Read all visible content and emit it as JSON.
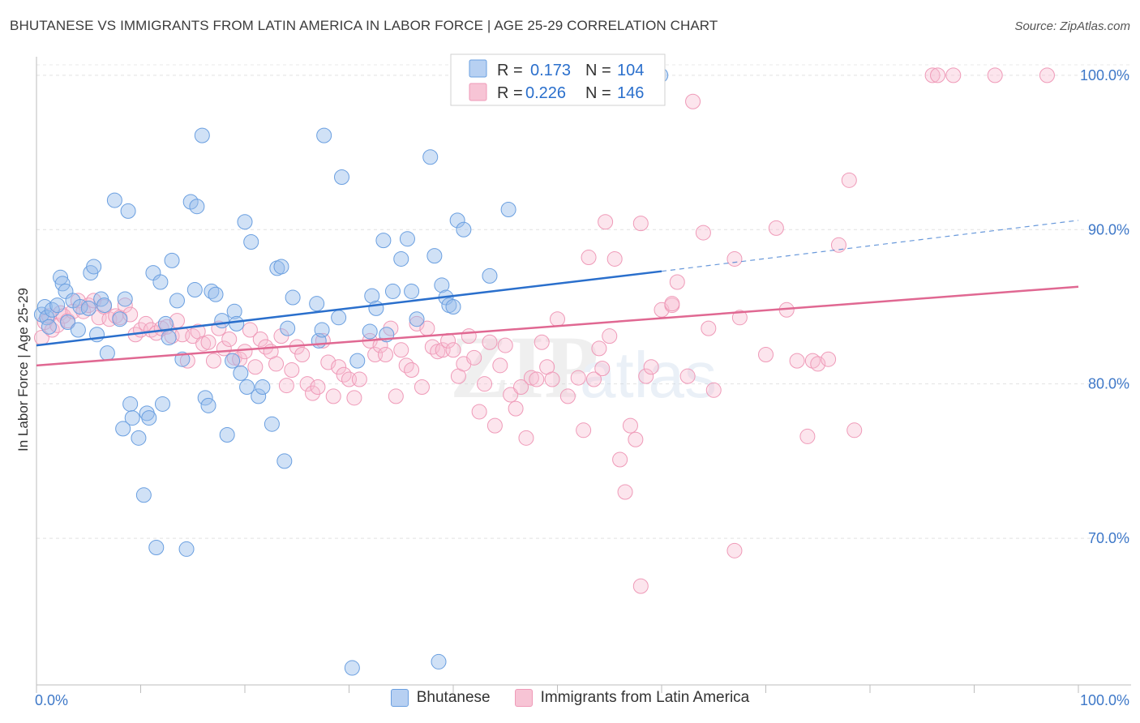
{
  "title": "BHUTANESE VS IMMIGRANTS FROM LATIN AMERICA IN LABOR FORCE | AGE 25-29 CORRELATION CHART",
  "source": "Source: ZipAtlas.com",
  "colors": {
    "blue": "#6a9fe0",
    "blue_line": "#2a6fcc",
    "pink": "#ef9ab8",
    "pink_line": "#e06892",
    "axis_text": "#3e78c8"
  },
  "chart_data": {
    "type": "scatter",
    "title": "BHUTANESE VS IMMIGRANTS FROM LATIN AMERICA IN LABOR FORCE | AGE 25-29 CORRELATION CHART",
    "ylabel": "In Labor Force | Age 25-29",
    "xlim": [
      0,
      100
    ],
    "ylim": [
      60.5,
      101.2
    ],
    "x_ticks": [
      "0.0%",
      "100.0%"
    ],
    "y_ticks": [
      {
        "value": 100,
        "label": "100.0%"
      },
      {
        "value": 90,
        "label": "90.0%"
      },
      {
        "value": 80,
        "label": "80.0%"
      },
      {
        "value": 70,
        "label": "70.0%"
      }
    ],
    "grid": true,
    "legend": [
      {
        "r_label": "R =",
        "r": "0.173",
        "n_label": "N =",
        "n": "104"
      },
      {
        "r_label": "R =",
        "r": "0.226",
        "n_label": "N =",
        "n": "146"
      }
    ],
    "series": [
      {
        "name": "Bhutanese",
        "trend": {
          "x0": 0,
          "y0": 82.5,
          "x1": 60,
          "y1": 87.3,
          "dash_to_x": 100,
          "dash_to_y": 90.6
        },
        "points": [
          [
            0.5,
            84.5
          ],
          [
            0.8,
            85
          ],
          [
            1,
            84.3
          ],
          [
            1.2,
            83.7
          ],
          [
            1.5,
            84.8
          ],
          [
            2,
            85.1
          ],
          [
            2.3,
            86.9
          ],
          [
            2.5,
            86.5
          ],
          [
            2.8,
            86
          ],
          [
            3,
            84
          ],
          [
            3.5,
            85.4
          ],
          [
            4,
            83.5
          ],
          [
            4.2,
            85
          ],
          [
            5,
            84.9
          ],
          [
            5.2,
            87.2
          ],
          [
            5.5,
            87.6
          ],
          [
            5.8,
            83.2
          ],
          [
            6.2,
            85.5
          ],
          [
            6.5,
            85.1
          ],
          [
            6.8,
            82
          ],
          [
            7.5,
            91.9
          ],
          [
            8,
            84.2
          ],
          [
            8.3,
            77.1
          ],
          [
            8.5,
            85.5
          ],
          [
            8.8,
            91.2
          ],
          [
            9,
            78.7
          ],
          [
            9.2,
            77.8
          ],
          [
            9.8,
            76.5
          ],
          [
            10.3,
            72.8
          ],
          [
            10.6,
            78.1
          ],
          [
            10.8,
            77.8
          ],
          [
            11.2,
            87.2
          ],
          [
            11.5,
            69.4
          ],
          [
            11.9,
            86.6
          ],
          [
            12.1,
            78.7
          ],
          [
            12.4,
            83.9
          ],
          [
            12.7,
            83
          ],
          [
            13,
            88
          ],
          [
            13.5,
            85.4
          ],
          [
            14,
            81.6
          ],
          [
            14.4,
            69.3
          ],
          [
            14.8,
            91.8
          ],
          [
            15.2,
            86.1
          ],
          [
            15.4,
            91.5
          ],
          [
            15.9,
            96.1
          ],
          [
            16.2,
            79.1
          ],
          [
            16.5,
            78.6
          ],
          [
            16.8,
            86
          ],
          [
            17.2,
            85.8
          ],
          [
            17.8,
            84.1
          ],
          [
            18.3,
            76.7
          ],
          [
            18.8,
            81.5
          ],
          [
            19,
            84.7
          ],
          [
            19.2,
            83.9
          ],
          [
            19.6,
            80.7
          ],
          [
            20,
            90.5
          ],
          [
            20.2,
            79.8
          ],
          [
            20.6,
            89.2
          ],
          [
            21.3,
            79.2
          ],
          [
            21.7,
            79.8
          ],
          [
            22.6,
            77.4
          ],
          [
            23.1,
            87.5
          ],
          [
            23.5,
            87.6
          ],
          [
            23.8,
            75
          ],
          [
            24.1,
            83.6
          ],
          [
            24.6,
            85.6
          ],
          [
            26.9,
            85.2
          ],
          [
            27.1,
            82.8
          ],
          [
            27.4,
            83.5
          ],
          [
            27.6,
            96.1
          ],
          [
            29,
            84.3
          ],
          [
            29.3,
            93.4
          ],
          [
            30.3,
            61.6
          ],
          [
            30.8,
            81.5
          ],
          [
            32,
            83.4
          ],
          [
            32.2,
            85.7
          ],
          [
            32.6,
            84.9
          ],
          [
            33.3,
            89.3
          ],
          [
            33.6,
            83.2
          ],
          [
            34.2,
            86
          ],
          [
            35,
            88.1
          ],
          [
            35.6,
            89.4
          ],
          [
            36,
            86
          ],
          [
            36.5,
            84.2
          ],
          [
            37.8,
            94.7
          ],
          [
            38.2,
            88.3
          ],
          [
            38.6,
            62
          ],
          [
            38.9,
            86.4
          ],
          [
            39.3,
            85.6
          ],
          [
            39.6,
            85.1
          ],
          [
            40,
            85
          ],
          [
            40.4,
            90.6
          ],
          [
            41,
            90
          ],
          [
            43.5,
            87
          ],
          [
            45.3,
            91.3
          ],
          [
            59.9,
            100
          ]
        ]
      },
      {
        "name": "Immigrants from Latin America",
        "trend": {
          "x0": 0,
          "y0": 81.2,
          "x1": 100,
          "y1": 86.3
        },
        "points": [
          [
            0.5,
            83
          ],
          [
            0.8,
            84
          ],
          [
            1.2,
            84.4
          ],
          [
            1.5,
            83.5
          ],
          [
            2,
            83.8
          ],
          [
            2.3,
            84.6
          ],
          [
            2.6,
            84.4
          ],
          [
            3,
            84.1
          ],
          [
            3.5,
            84.7
          ],
          [
            4,
            85.4
          ],
          [
            4.5,
            84.7
          ],
          [
            5,
            85.1
          ],
          [
            5.5,
            85.4
          ],
          [
            6,
            84.3
          ],
          [
            6.5,
            85
          ],
          [
            7,
            84.2
          ],
          [
            7.6,
            84.4
          ],
          [
            8,
            84.3
          ],
          [
            8.5,
            85.1
          ],
          [
            9,
            84.5
          ],
          [
            9.5,
            83.2
          ],
          [
            10,
            83.5
          ],
          [
            10.5,
            83.9
          ],
          [
            11,
            83.5
          ],
          [
            11.5,
            83.3
          ],
          [
            12,
            83.6
          ],
          [
            12.5,
            83.7
          ],
          [
            13,
            83.1
          ],
          [
            13.5,
            84.1
          ],
          [
            14,
            83.2
          ],
          [
            14.5,
            81.5
          ],
          [
            15,
            83.1
          ],
          [
            15.5,
            83.4
          ],
          [
            16,
            82.6
          ],
          [
            16.5,
            82.7
          ],
          [
            17,
            81.5
          ],
          [
            17.5,
            83.6
          ],
          [
            18,
            82.3
          ],
          [
            18.5,
            82.9
          ],
          [
            19,
            81.7
          ],
          [
            19.5,
            81.6
          ],
          [
            20,
            82.1
          ],
          [
            20.5,
            83.5
          ],
          [
            21,
            81.1
          ],
          [
            21.5,
            82.9
          ],
          [
            22,
            82.4
          ],
          [
            22.5,
            82.1
          ],
          [
            23,
            81.3
          ],
          [
            23.5,
            83.1
          ],
          [
            24,
            79.9
          ],
          [
            24.5,
            80.9
          ],
          [
            25,
            82.4
          ],
          [
            25.5,
            81.9
          ],
          [
            26,
            80
          ],
          [
            26.5,
            79.4
          ],
          [
            27,
            79.8
          ],
          [
            27.5,
            82.8
          ],
          [
            28,
            81.4
          ],
          [
            28.5,
            79.2
          ],
          [
            29,
            81.1
          ],
          [
            29.5,
            80.6
          ],
          [
            30,
            80.3
          ],
          [
            30.5,
            79.1
          ],
          [
            31,
            80.3
          ],
          [
            32,
            82.8
          ],
          [
            32.5,
            81.9
          ],
          [
            33,
            82.5
          ],
          [
            33.5,
            81.9
          ],
          [
            34,
            83.6
          ],
          [
            34.5,
            79.2
          ],
          [
            35,
            82.2
          ],
          [
            35.5,
            81.2
          ],
          [
            36,
            80.9
          ],
          [
            36.5,
            83.9
          ],
          [
            37,
            79.8
          ],
          [
            37.5,
            83.6
          ],
          [
            38,
            82.4
          ],
          [
            38.5,
            82.1
          ],
          [
            39,
            82.2
          ],
          [
            39.5,
            82.8
          ],
          [
            40,
            82.2
          ],
          [
            40.5,
            80.5
          ],
          [
            41,
            81.3
          ],
          [
            41.5,
            83.1
          ],
          [
            42,
            81.7
          ],
          [
            42.5,
            78.2
          ],
          [
            43,
            80
          ],
          [
            43.5,
            82.7
          ],
          [
            44,
            77.3
          ],
          [
            44.5,
            81.2
          ],
          [
            45,
            82.5
          ],
          [
            45.5,
            79.3
          ],
          [
            46,
            78.4
          ],
          [
            46.5,
            79.8
          ],
          [
            47,
            76.5
          ],
          [
            47.5,
            80.4
          ],
          [
            48,
            80.3
          ],
          [
            48.5,
            82.7
          ],
          [
            49,
            81.1
          ],
          [
            49.5,
            80.3
          ],
          [
            50,
            84.2
          ],
          [
            51,
            79.2
          ],
          [
            52,
            80.4
          ],
          [
            52.5,
            77
          ],
          [
            53,
            88.2
          ],
          [
            53.5,
            80.3
          ],
          [
            54,
            82.3
          ],
          [
            54.3,
            81
          ],
          [
            54.6,
            90.5
          ],
          [
            55,
            83.1
          ],
          [
            55.5,
            88.1
          ],
          [
            56,
            75.1
          ],
          [
            56.5,
            73
          ],
          [
            57,
            77.3
          ],
          [
            57.5,
            76.4
          ],
          [
            58,
            90.4
          ],
          [
            58.5,
            80.5
          ],
          [
            59,
            81.1
          ],
          [
            60,
            84.8
          ],
          [
            61,
            85.1
          ],
          [
            61.5,
            86.6
          ],
          [
            62.5,
            80.5
          ],
          [
            64,
            89.8
          ],
          [
            64.5,
            83.6
          ],
          [
            65,
            79.6
          ],
          [
            67,
            88.1
          ],
          [
            67.5,
            84.3
          ],
          [
            70,
            81.9
          ],
          [
            71,
            90.1
          ],
          [
            72,
            84.8
          ],
          [
            73,
            81.5
          ],
          [
            74,
            76.6
          ],
          [
            74.5,
            81.5
          ],
          [
            75,
            81.3
          ],
          [
            76,
            81.6
          ],
          [
            77,
            89
          ],
          [
            78,
            93.2
          ],
          [
            78.5,
            77
          ],
          [
            86,
            100
          ],
          [
            86.5,
            100
          ],
          [
            88,
            100
          ],
          [
            92,
            100
          ],
          [
            97,
            100
          ],
          [
            58,
            66.9
          ],
          [
            63,
            98.3
          ],
          [
            67,
            69.2
          ],
          [
            61,
            85.2
          ]
        ]
      }
    ]
  },
  "bottom_legend": [
    {
      "label": "Bhutanese"
    },
    {
      "label": "Immigrants from Latin America"
    }
  ],
  "watermark": "ZIPatlas"
}
